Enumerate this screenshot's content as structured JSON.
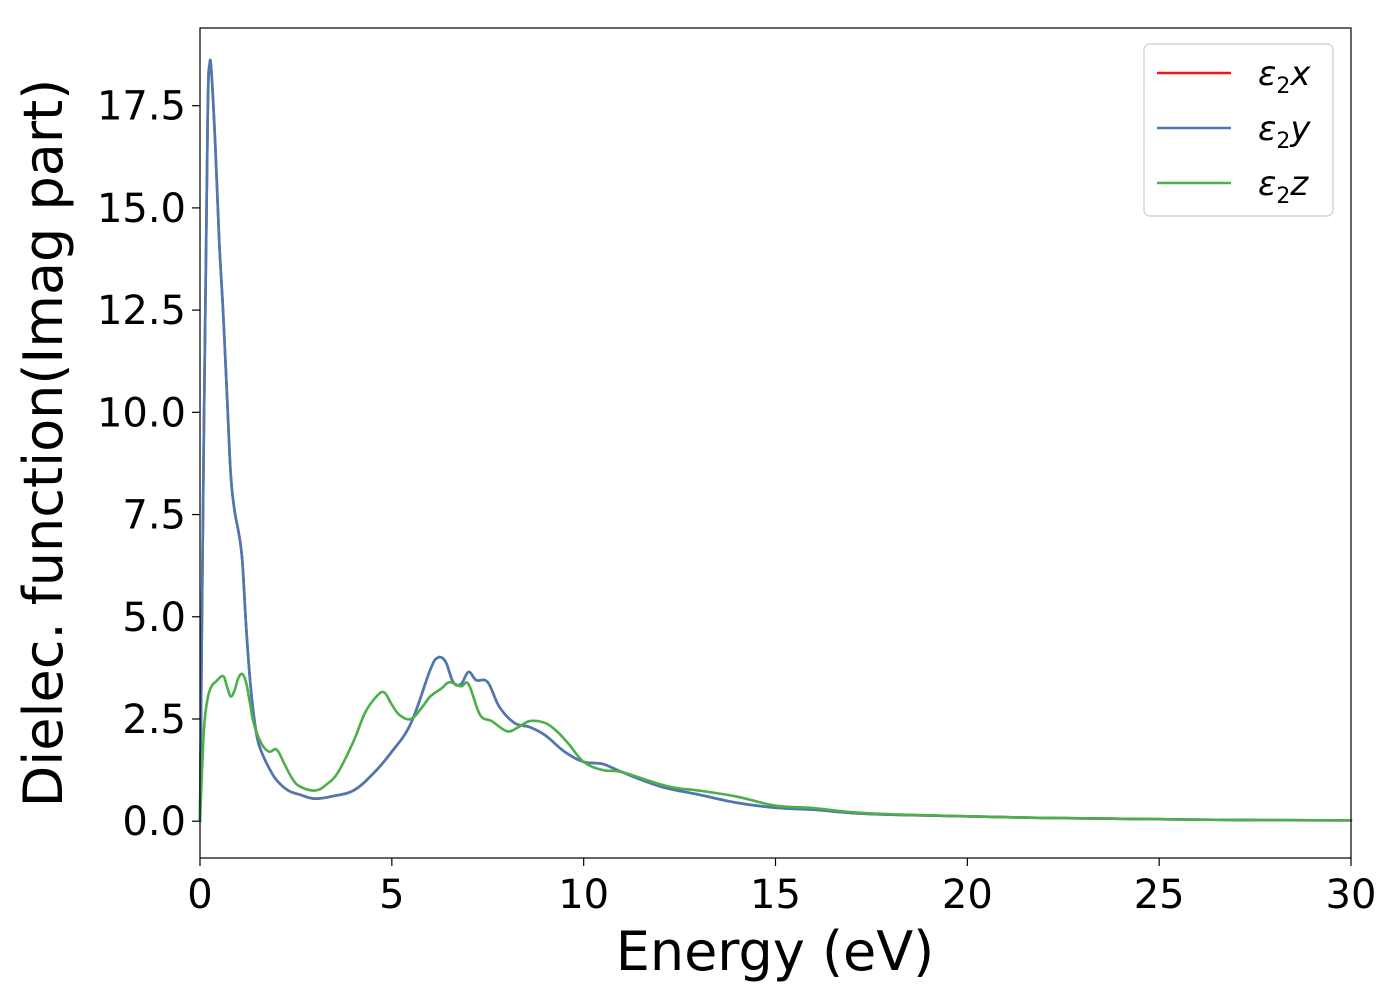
{
  "chart_data": {
    "type": "line",
    "xlabel": "Energy (eV)",
    "ylabel": "Dielec. function(Imag part)",
    "xlim": [
      0,
      30
    ],
    "ylim": [
      -0.9,
      19.4
    ],
    "x_ticks": [
      "0",
      "5",
      "10",
      "15",
      "20",
      "25",
      "30"
    ],
    "x_tick_values": [
      0,
      5,
      10,
      15,
      20,
      25,
      30
    ],
    "y_ticks": [
      "0.0",
      "2.5",
      "5.0",
      "7.5",
      "10.0",
      "12.5",
      "15.0",
      "17.5"
    ],
    "y_tick_values": [
      0,
      2.5,
      5,
      7.5,
      10,
      12.5,
      15,
      17.5
    ],
    "grid": false,
    "legend_position": "top-right",
    "series": [
      {
        "name": "ε2x",
        "legend_base": "ε",
        "legend_sub": "2",
        "legend_var": "x",
        "color": "#e41a1c",
        "x": [
          0,
          0.1,
          0.2,
          0.25,
          0.3,
          0.4,
          0.5,
          0.6,
          0.7,
          0.8,
          0.9,
          1.0,
          1.1,
          1.2,
          1.3,
          1.4,
          1.5,
          1.6,
          1.8,
          2.0,
          2.3,
          2.6,
          3.0,
          3.5,
          4.0,
          4.5,
          5.0,
          5.5,
          6.0,
          6.2,
          6.4,
          6.6,
          6.8,
          7.0,
          7.2,
          7.5,
          7.8,
          8.2,
          8.6,
          9.0,
          9.5,
          10.0,
          10.5,
          11.0,
          12.0,
          13.0,
          14.0,
          15.0,
          16.0,
          17.0,
          18.0,
          20.0,
          22.0,
          25.0,
          27.0,
          30.0
        ],
        "y": [
          0,
          9.5,
          17.2,
          18.5,
          18.3,
          16.5,
          14.2,
          12.5,
          10.5,
          8.5,
          7.6,
          7.1,
          6.4,
          4.8,
          3.5,
          2.6,
          2.0,
          1.7,
          1.3,
          1.0,
          0.75,
          0.65,
          0.55,
          0.62,
          0.75,
          1.15,
          1.7,
          2.4,
          3.7,
          4.0,
          3.9,
          3.4,
          3.35,
          3.65,
          3.45,
          3.4,
          2.8,
          2.4,
          2.3,
          2.1,
          1.7,
          1.45,
          1.4,
          1.2,
          0.85,
          0.65,
          0.45,
          0.33,
          0.28,
          0.2,
          0.16,
          0.12,
          0.08,
          0.05,
          0.03,
          0.02
        ]
      },
      {
        "name": "ε2y",
        "legend_base": "ε",
        "legend_sub": "2",
        "legend_var": "y",
        "color": "#4a7ab3",
        "x": [
          0,
          0.1,
          0.2,
          0.25,
          0.3,
          0.4,
          0.5,
          0.6,
          0.7,
          0.8,
          0.9,
          1.0,
          1.1,
          1.2,
          1.3,
          1.4,
          1.5,
          1.6,
          1.8,
          2.0,
          2.3,
          2.6,
          3.0,
          3.5,
          4.0,
          4.5,
          5.0,
          5.5,
          6.0,
          6.2,
          6.4,
          6.6,
          6.8,
          7.0,
          7.2,
          7.5,
          7.8,
          8.2,
          8.6,
          9.0,
          9.5,
          10.0,
          10.5,
          11.0,
          12.0,
          13.0,
          14.0,
          15.0,
          16.0,
          17.0,
          18.0,
          20.0,
          22.0,
          25.0,
          27.0,
          30.0
        ],
        "y": [
          0,
          9.5,
          17.2,
          18.5,
          18.3,
          16.5,
          14.2,
          12.5,
          10.5,
          8.5,
          7.6,
          7.1,
          6.4,
          4.8,
          3.5,
          2.6,
          2.0,
          1.7,
          1.3,
          1.0,
          0.75,
          0.65,
          0.55,
          0.62,
          0.75,
          1.15,
          1.7,
          2.4,
          3.7,
          4.0,
          3.9,
          3.4,
          3.35,
          3.65,
          3.45,
          3.4,
          2.8,
          2.4,
          2.3,
          2.1,
          1.7,
          1.45,
          1.4,
          1.2,
          0.85,
          0.65,
          0.45,
          0.33,
          0.28,
          0.2,
          0.16,
          0.12,
          0.08,
          0.05,
          0.03,
          0.02
        ]
      },
      {
        "name": "ε2z",
        "legend_base": "ε",
        "legend_sub": "2",
        "legend_var": "z",
        "color": "#4daf4a",
        "x": [
          0,
          0.1,
          0.2,
          0.3,
          0.4,
          0.6,
          0.7,
          0.8,
          0.9,
          1.0,
          1.1,
          1.2,
          1.3,
          1.4,
          1.6,
          1.8,
          2.0,
          2.2,
          2.4,
          2.6,
          3.0,
          3.3,
          3.6,
          4.0,
          4.3,
          4.6,
          4.8,
          5.0,
          5.2,
          5.5,
          5.8,
          6.0,
          6.3,
          6.5,
          6.8,
          7.0,
          7.3,
          7.6,
          8.0,
          8.3,
          8.6,
          9.0,
          9.3,
          9.6,
          10.0,
          10.5,
          11.0,
          12.0,
          12.5,
          13.0,
          14.0,
          15.0,
          16.0,
          17.0,
          18.0,
          20.0,
          22.0,
          25.0,
          27.0,
          30.0
        ],
        "y": [
          0,
          2.2,
          3.0,
          3.3,
          3.4,
          3.55,
          3.3,
          3.05,
          3.2,
          3.5,
          3.6,
          3.4,
          2.9,
          2.4,
          1.9,
          1.7,
          1.75,
          1.4,
          1.05,
          0.85,
          0.75,
          0.9,
          1.2,
          1.95,
          2.65,
          3.05,
          3.15,
          2.85,
          2.6,
          2.5,
          2.8,
          3.05,
          3.25,
          3.4,
          3.3,
          3.35,
          2.6,
          2.45,
          2.2,
          2.3,
          2.45,
          2.4,
          2.2,
          1.9,
          1.45,
          1.25,
          1.2,
          0.9,
          0.8,
          0.75,
          0.6,
          0.38,
          0.32,
          0.22,
          0.17,
          0.12,
          0.08,
          0.05,
          0.03,
          0.02
        ]
      }
    ]
  }
}
